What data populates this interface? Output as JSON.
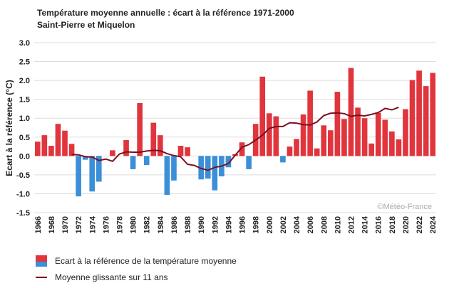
{
  "chart_data": {
    "type": "bar",
    "title": "Température moyenne annuelle : écart à la référence 1971-2000",
    "subtitle": "Saint-Pierre et Miquelon",
    "ylabel": "Ecart à la référence (°C)",
    "xlabel": "",
    "ylim": [
      -1.5,
      3.0
    ],
    "yticks": [
      "3.0",
      "2.5",
      "2.0",
      "1.5",
      "1.0",
      "0.5",
      "0.0",
      "-0.5",
      "-1.0",
      "-1.5"
    ],
    "ytick_values": [
      3.0,
      2.5,
      2.0,
      1.5,
      1.0,
      0.5,
      0.0,
      -0.5,
      -1.0,
      -1.5
    ],
    "grid": true,
    "watermark": "©Météo-France",
    "x": [
      1966,
      1967,
      1968,
      1969,
      1970,
      1971,
      1972,
      1973,
      1974,
      1975,
      1976,
      1977,
      1978,
      1979,
      1980,
      1981,
      1982,
      1983,
      1984,
      1985,
      1986,
      1987,
      1988,
      1989,
      1990,
      1991,
      1992,
      1993,
      1994,
      1995,
      1996,
      1997,
      1998,
      1999,
      2000,
      2001,
      2002,
      2003,
      2004,
      2005,
      2006,
      2007,
      2008,
      2009,
      2010,
      2011,
      2012,
      2013,
      2014,
      2015,
      2016,
      2017,
      2018,
      2019,
      2020,
      2021,
      2022,
      2023,
      2024
    ],
    "xtick_labels": [
      "1966",
      "1968",
      "1970",
      "1972",
      "1974",
      "1976",
      "1978",
      "1980",
      "1982",
      "1984",
      "1986",
      "1988",
      "1990",
      "1992",
      "1994",
      "1996",
      "1998",
      "2000",
      "2002",
      "2004",
      "2006",
      "2008",
      "2010",
      "2012",
      "2014",
      "2016",
      "2018",
      "2020",
      "2022",
      "2024"
    ],
    "values": [
      0.38,
      0.55,
      0.27,
      0.85,
      0.67,
      0.32,
      -1.07,
      -0.1,
      -0.94,
      -0.68,
      0.0,
      0.15,
      0.0,
      0.42,
      -0.35,
      1.4,
      -0.24,
      0.88,
      0.55,
      -1.03,
      -0.65,
      0.27,
      0.23,
      0.0,
      -0.62,
      -0.6,
      -0.91,
      -0.54,
      -0.3,
      0.05,
      0.36,
      -0.35,
      0.85,
      2.1,
      1.13,
      1.05,
      -0.17,
      0.25,
      0.45,
      1.1,
      1.73,
      0.2,
      0.81,
      0.68,
      1.7,
      0.98,
      2.33,
      1.28,
      1.0,
      0.33,
      1.14,
      0.96,
      0.65,
      0.44,
      1.24,
      2.01,
      2.26,
      1.85,
      2.2
    ],
    "moving_average": {
      "x": [
        1971,
        1972,
        1973,
        1974,
        1975,
        1976,
        1977,
        1978,
        1979,
        1980,
        1981,
        1982,
        1983,
        1984,
        1985,
        1986,
        1987,
        1988,
        1989,
        1990,
        1991,
        1992,
        1993,
        1994,
        1995,
        1996,
        1997,
        1998,
        1999,
        2000,
        2001,
        2002,
        2003,
        2004,
        2005,
        2006,
        2007,
        2008,
        2009,
        2010,
        2011,
        2012,
        2013,
        2014,
        2015,
        2016,
        2017,
        2018,
        2019
      ],
      "y": [
        0.04,
        0.03,
        -0.02,
        -0.03,
        -0.12,
        -0.08,
        -0.14,
        0.05,
        0.11,
        0.1,
        0.1,
        0.13,
        0.15,
        0.14,
        0.06,
        0.01,
        -0.02,
        -0.22,
        -0.25,
        -0.33,
        -0.38,
        -0.3,
        -0.27,
        -0.2,
        0.02,
        0.23,
        0.3,
        0.42,
        0.55,
        0.73,
        0.78,
        0.78,
        0.88,
        0.87,
        0.83,
        0.82,
        0.9,
        1.07,
        1.13,
        1.14,
        1.12,
        1.05,
        1.08,
        1.06,
        1.1,
        1.15,
        1.26,
        1.22,
        1.29
      ]
    },
    "colors": {
      "positive": "#e0353d",
      "negative": "#3a8fd8",
      "moving_average": "#7a1020",
      "grid": "#dddddd"
    },
    "legend": [
      {
        "label": "Ecart à la référence de la température moyenne",
        "kind": "bar-swatch"
      },
      {
        "label": "Moyenne glissante sur 11 ans",
        "kind": "line"
      }
    ],
    "legend_placement": "bottom-left"
  }
}
